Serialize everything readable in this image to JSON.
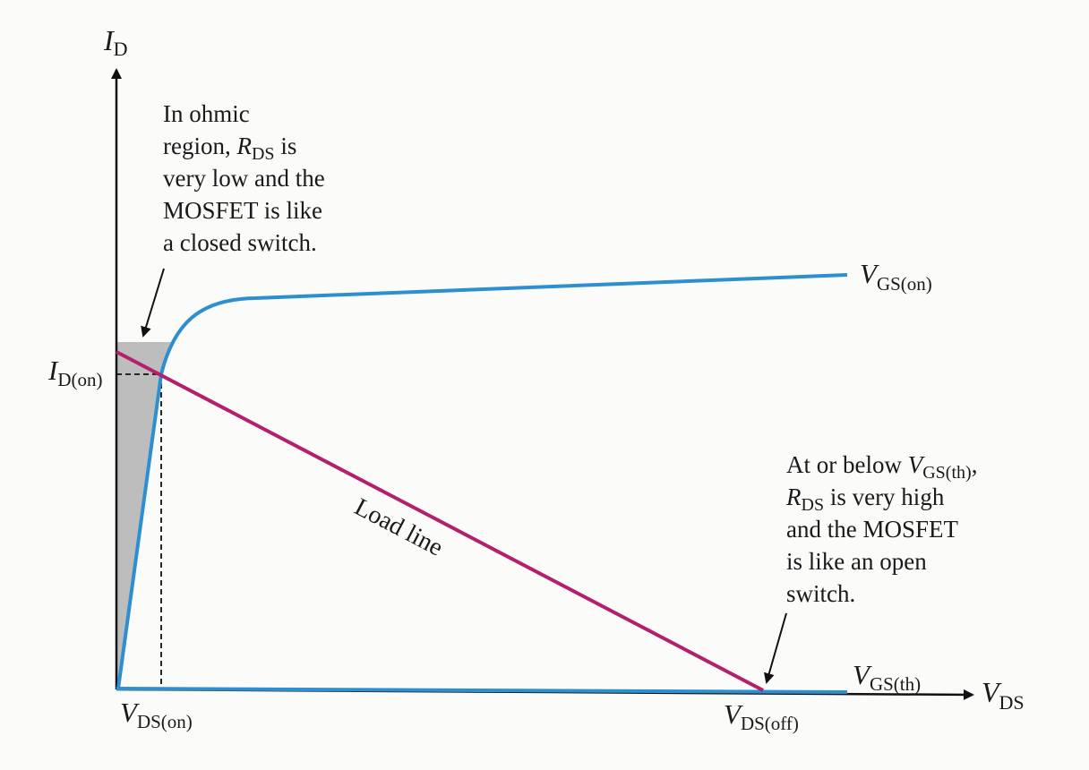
{
  "axes": {
    "y_label_main": "I",
    "y_label_sub": "D",
    "x_label_main": "V",
    "x_label_sub": "DS"
  },
  "ticks": {
    "id_on_main": "I",
    "id_on_sub": "D(on)",
    "vds_on_main": "V",
    "vds_on_sub": "DS(on)",
    "vds_off_main": "V",
    "vds_off_sub": "DS(off)"
  },
  "curves": {
    "vgs_on_main": "V",
    "vgs_on_sub": "GS(on)",
    "vgs_th_main": "V",
    "vgs_th_sub": "GS(th)",
    "load_line": "Load line"
  },
  "annotations": {
    "ohmic": {
      "line1": "In ohmic",
      "line2_pre": "region, ",
      "line2_r": "R",
      "line2_sub": "DS",
      "line2_post": " is",
      "line3": "very low and the",
      "line4": "MOSFET is like",
      "line5": "a closed switch."
    },
    "cutoff": {
      "line1_pre": "At or below ",
      "line1_v": "V",
      "line1_sub": "GS(th)",
      "line1_post": ",",
      "line2_r": "R",
      "line2_sub": "DS",
      "line2_post": " is very high",
      "line3": "and the MOSFET",
      "line4": "is like an open",
      "line5": "switch."
    }
  },
  "colors": {
    "curve": "#2e8fd0",
    "load_line": "#b41f6e",
    "ohmic_region": "#bdbdbd",
    "axis": "#111111"
  }
}
